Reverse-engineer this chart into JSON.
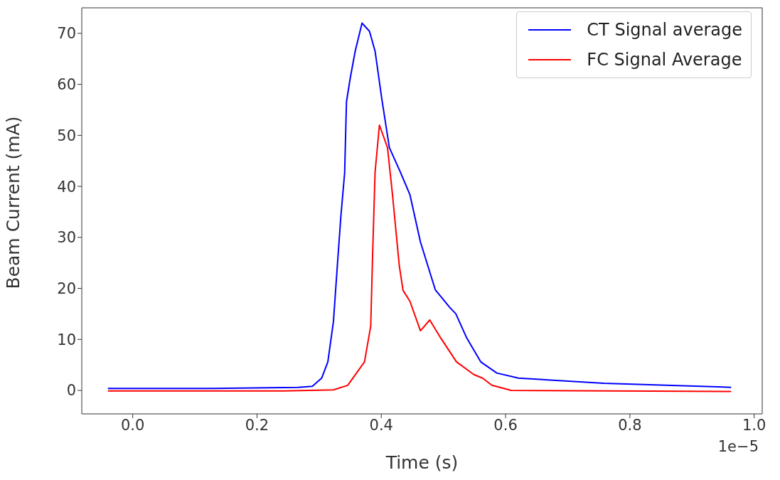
{
  "chart_data": {
    "type": "line",
    "xlabel": "Time (s)",
    "ylabel": "Beam Current (mA)",
    "annotations": [
      "1e−5"
    ],
    "xlim": [
      -0.082,
      1.013
    ],
    "xticks": [
      {
        "value": 0,
        "label": "0.0"
      },
      0.2,
      0.4,
      0.6,
      0.8,
      {
        "value": 1,
        "label": "1.0"
      }
    ],
    "ylim": [
      -4.6,
      75
    ],
    "yticks": [
      0,
      10,
      20,
      30,
      40,
      50,
      60,
      70
    ],
    "legend": "top right",
    "line_style": "solid",
    "marker": "none",
    "series": [
      {
        "name": "CT Signal average",
        "color": "#0000ff",
        "x": [
          -0.04,
          0.129,
          0.266,
          0.289,
          0.304,
          0.314,
          0.323,
          0.329,
          0.335,
          0.341,
          0.344,
          0.35,
          0.358,
          0.369,
          0.381,
          0.39,
          0.401,
          0.413,
          0.43,
          0.446,
          0.463,
          0.487,
          0.51,
          0.52,
          0.537,
          0.56,
          0.586,
          0.621,
          0.758,
          0.963
        ],
        "values": [
          0.4,
          0.4,
          0.6,
          0.8,
          2.4,
          5.6,
          13.5,
          24,
          34.2,
          42.6,
          56.6,
          61.2,
          66.5,
          72,
          70.4,
          66.5,
          57,
          47.6,
          43,
          38.4,
          29.1,
          19.7,
          16.3,
          15,
          10.4,
          5.6,
          3.4,
          2.4,
          1.4,
          0.6
        ]
      },
      {
        "name": "FC Signal Average",
        "color": "#ff0000",
        "x": [
          -0.04,
          0.243,
          0.323,
          0.346,
          0.373,
          0.383,
          0.386,
          0.39,
          0.397,
          0.41,
          0.418,
          0.429,
          0.435,
          0.446,
          0.463,
          0.478,
          0.495,
          0.521,
          0.549,
          0.563,
          0.578,
          0.609,
          0.963
        ],
        "values": [
          -0.1,
          -0.1,
          0.1,
          1,
          5.6,
          12.6,
          26.5,
          42.8,
          52,
          47.6,
          38.4,
          24.4,
          19.6,
          17.5,
          11.7,
          13.8,
          10.4,
          5.6,
          3.1,
          2.4,
          1,
          0,
          -0.2
        ]
      }
    ]
  }
}
